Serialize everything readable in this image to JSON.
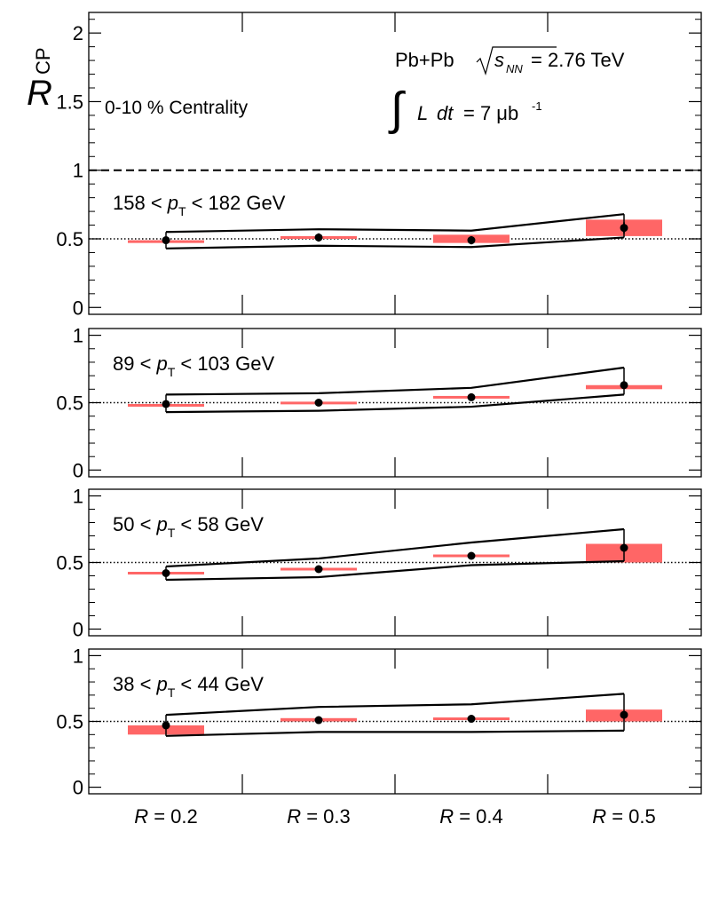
{
  "figure": {
    "ylabel_main": "R",
    "ylabel_sub": "CP",
    "system": "Pb+Pb",
    "sqrt_s": "s",
    "sqrt_s_sub": "NN",
    "energy": "= 2.76 TeV",
    "lumi_integral": "∫",
    "lumi_l": "L",
    "lumi_dt": "dt",
    "lumi_value": "= 7 μb",
    "lumi_exp": "-1",
    "centrality": "0-10 % Centrality",
    "xtick_labels": [
      "R = 0.2",
      "R = 0.3",
      "R = 0.4",
      "R = 0.5"
    ],
    "x_variable": "R",
    "reference_line_label": "1",
    "point_color": "#000000",
    "syst_color": "#ff6666",
    "band_color": "#000000"
  },
  "chart_data": [
    {
      "type": "scatter",
      "title": "158 < pT < 182 GeV",
      "pt_low": "158",
      "pt_high": "182",
      "x": [
        0.2,
        0.3,
        0.4,
        0.5
      ],
      "y": [
        0.49,
        0.51,
        0.49,
        0.58
      ],
      "stat_err": [
        0.02,
        0.03,
        0.03,
        0.04
      ],
      "syst_low": [
        0.47,
        0.5,
        0.47,
        0.52
      ],
      "syst_high": [
        0.49,
        0.52,
        0.53,
        0.64
      ],
      "band_upper": [
        0.55,
        0.57,
        0.56,
        0.68
      ],
      "band_lower": [
        0.43,
        0.45,
        0.44,
        0.51
      ],
      "ylim": [
        -0.05,
        2.15
      ],
      "yticks": [
        0,
        0.5,
        1,
        1.5,
        2
      ],
      "ytick_labels": [
        "0",
        "0.5",
        "1",
        "1.5",
        "2"
      ]
    },
    {
      "type": "scatter",
      "title": "89 < pT < 103 GeV",
      "pt_low": "89",
      "pt_high": "103",
      "x": [
        0.2,
        0.3,
        0.4,
        0.5
      ],
      "y": [
        0.49,
        0.5,
        0.54,
        0.63
      ],
      "stat_err": [
        0.01,
        0.01,
        0.01,
        0.01
      ],
      "syst_low": [
        0.47,
        0.49,
        0.535,
        0.6
      ],
      "syst_high": [
        0.49,
        0.505,
        0.545,
        0.63
      ],
      "band_upper": [
        0.56,
        0.57,
        0.61,
        0.76
      ],
      "band_lower": [
        0.43,
        0.44,
        0.47,
        0.56
      ],
      "ylim": [
        -0.05,
        1.05
      ],
      "yticks": [
        0,
        0.5,
        1
      ],
      "ytick_labels": [
        "0",
        "0.5",
        "1"
      ]
    },
    {
      "type": "scatter",
      "title": "50 < pT < 58 GeV",
      "pt_low": "50",
      "pt_high": "58",
      "x": [
        0.2,
        0.3,
        0.4,
        0.5
      ],
      "y": [
        0.42,
        0.45,
        0.55,
        0.61
      ],
      "stat_err": [
        0.01,
        0.01,
        0.01,
        0.01
      ],
      "syst_low": [
        0.41,
        0.44,
        0.545,
        0.5
      ],
      "syst_high": [
        0.43,
        0.46,
        0.555,
        0.64
      ],
      "band_upper": [
        0.47,
        0.53,
        0.65,
        0.75
      ],
      "band_lower": [
        0.37,
        0.39,
        0.48,
        0.51
      ],
      "ylim": [
        -0.05,
        1.05
      ],
      "yticks": [
        0,
        0.5,
        1
      ],
      "ytick_labels": [
        "0",
        "0.5",
        "1"
      ]
    },
    {
      "type": "scatter",
      "title": "38 < pT < 44 GeV",
      "pt_low": "38",
      "pt_high": "44",
      "x": [
        0.2,
        0.3,
        0.4,
        0.5
      ],
      "y": [
        0.47,
        0.51,
        0.52,
        0.55
      ],
      "stat_err": [
        0.01,
        0.01,
        0.01,
        0.01
      ],
      "syst_low": [
        0.4,
        0.5,
        0.515,
        0.5
      ],
      "syst_high": [
        0.47,
        0.525,
        0.525,
        0.59
      ],
      "band_upper": [
        0.55,
        0.61,
        0.63,
        0.71
      ],
      "band_lower": [
        0.39,
        0.42,
        0.42,
        0.43
      ],
      "ylim": [
        -0.05,
        1.05
      ],
      "yticks": [
        0,
        0.5,
        1
      ],
      "ytick_labels": [
        "0",
        "0.5",
        "1"
      ]
    }
  ]
}
